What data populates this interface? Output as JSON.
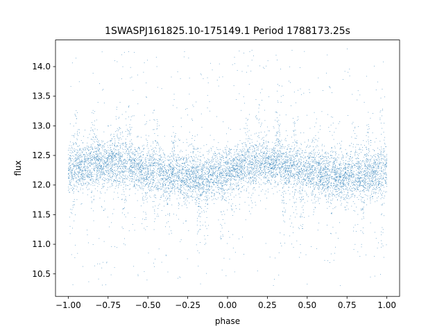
{
  "chart_data": {
    "type": "scatter",
    "title": "1SWASPJ161825.10-175149.1 Period 1788173.25s",
    "xlabel": "phase",
    "ylabel": "flux",
    "xlim": [
      -1.08,
      1.08
    ],
    "ylim": [
      10.12,
      14.45
    ],
    "x_ticks": [
      -1.0,
      -0.75,
      -0.5,
      -0.25,
      0.0,
      0.25,
      0.5,
      0.75,
      1.0
    ],
    "x_tick_labels": [
      "−1.00",
      "−0.75",
      "−0.50",
      "−0.25",
      "0.00",
      "0.25",
      "0.50",
      "0.75",
      "1.00"
    ],
    "y_ticks": [
      10.5,
      11.0,
      11.5,
      12.0,
      12.5,
      13.0,
      13.5,
      14.0
    ],
    "y_tick_labels": [
      "10.5",
      "11.0",
      "11.5",
      "12.0",
      "12.5",
      "13.0",
      "13.5",
      "14.0"
    ],
    "grid": false,
    "colors": {
      "points": "#1f77b4"
    },
    "series": [
      {
        "phase_range": [
          -1.0,
          1.0
        ],
        "flux_median": 12.25,
        "flux_core_range": [
          11.8,
          12.8
        ],
        "flux_full_range": [
          10.3,
          14.3
        ],
        "dip_phases": [
          -0.97,
          -0.85,
          -0.78,
          -0.65,
          -0.52,
          -0.45,
          -0.38,
          -0.18,
          -0.14,
          -0.03,
          0.03,
          0.15,
          0.35,
          0.42,
          0.47,
          0.55,
          0.65,
          0.8,
          0.85,
          0.97
        ],
        "peak_phases": [
          -0.95,
          -0.84,
          -0.68,
          -0.62,
          -0.45,
          -0.33,
          -0.22,
          0.12,
          0.2,
          0.32,
          0.42,
          0.55,
          0.65,
          0.8,
          0.88,
          0.97
        ]
      }
    ]
  }
}
